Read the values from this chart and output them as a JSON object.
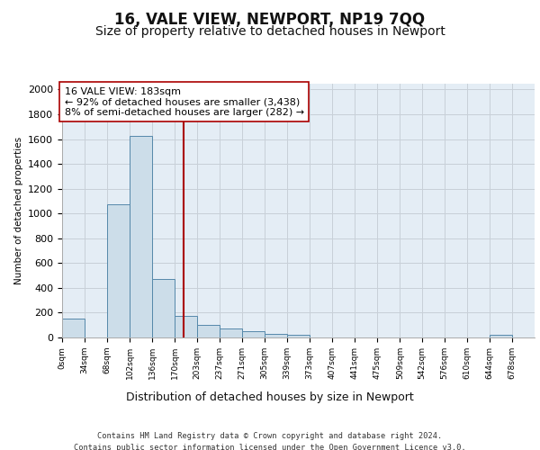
{
  "title": "16, VALE VIEW, NEWPORT, NP19 7QQ",
  "subtitle": "Size of property relative to detached houses in Newport",
  "xlabel": "Distribution of detached houses by size in Newport",
  "ylabel": "Number of detached properties",
  "footer_line1": "Contains HM Land Registry data © Crown copyright and database right 2024.",
  "footer_line2": "Contains public sector information licensed under the Open Government Licence v3.0.",
  "annotation_line1": "16 VALE VIEW: 183sqm",
  "annotation_line2": "← 92% of detached houses are smaller (3,438)",
  "annotation_line3": "8% of semi-detached houses are larger (282) →",
  "bar_left_edges": [
    0,
    34,
    68,
    102,
    136,
    170,
    203,
    237,
    271,
    305,
    339,
    373,
    407,
    441,
    475,
    509,
    542,
    576,
    610,
    644
  ],
  "bar_widths": [
    34,
    34,
    34,
    34,
    34,
    33,
    34,
    34,
    34,
    34,
    34,
    34,
    34,
    34,
    34,
    33,
    34,
    34,
    34,
    34
  ],
  "bar_heights": [
    150,
    0,
    1075,
    1625,
    475,
    175,
    100,
    75,
    50,
    30,
    25,
    0,
    0,
    0,
    0,
    0,
    0,
    0,
    0,
    25
  ],
  "tick_labels": [
    "0sqm",
    "34sqm",
    "68sqm",
    "102sqm",
    "136sqm",
    "170sqm",
    "203sqm",
    "237sqm",
    "271sqm",
    "305sqm",
    "339sqm",
    "373sqm",
    "407sqm",
    "441sqm",
    "475sqm",
    "509sqm",
    "542sqm",
    "576sqm",
    "610sqm",
    "644sqm",
    "678sqm"
  ],
  "xlim": [
    0,
    712
  ],
  "ylim": [
    0,
    2050
  ],
  "yticks": [
    0,
    200,
    400,
    600,
    800,
    1000,
    1200,
    1400,
    1600,
    1800,
    2000
  ],
  "bar_color": "#ccdde9",
  "bar_edge_color": "#5588aa",
  "vline_color": "#aa0000",
  "vline_x": 183,
  "grid_color": "#c8d0d8",
  "bg_color": "#e4edf5",
  "title_fontsize": 12,
  "subtitle_fontsize": 10,
  "annotation_fontsize": 8
}
